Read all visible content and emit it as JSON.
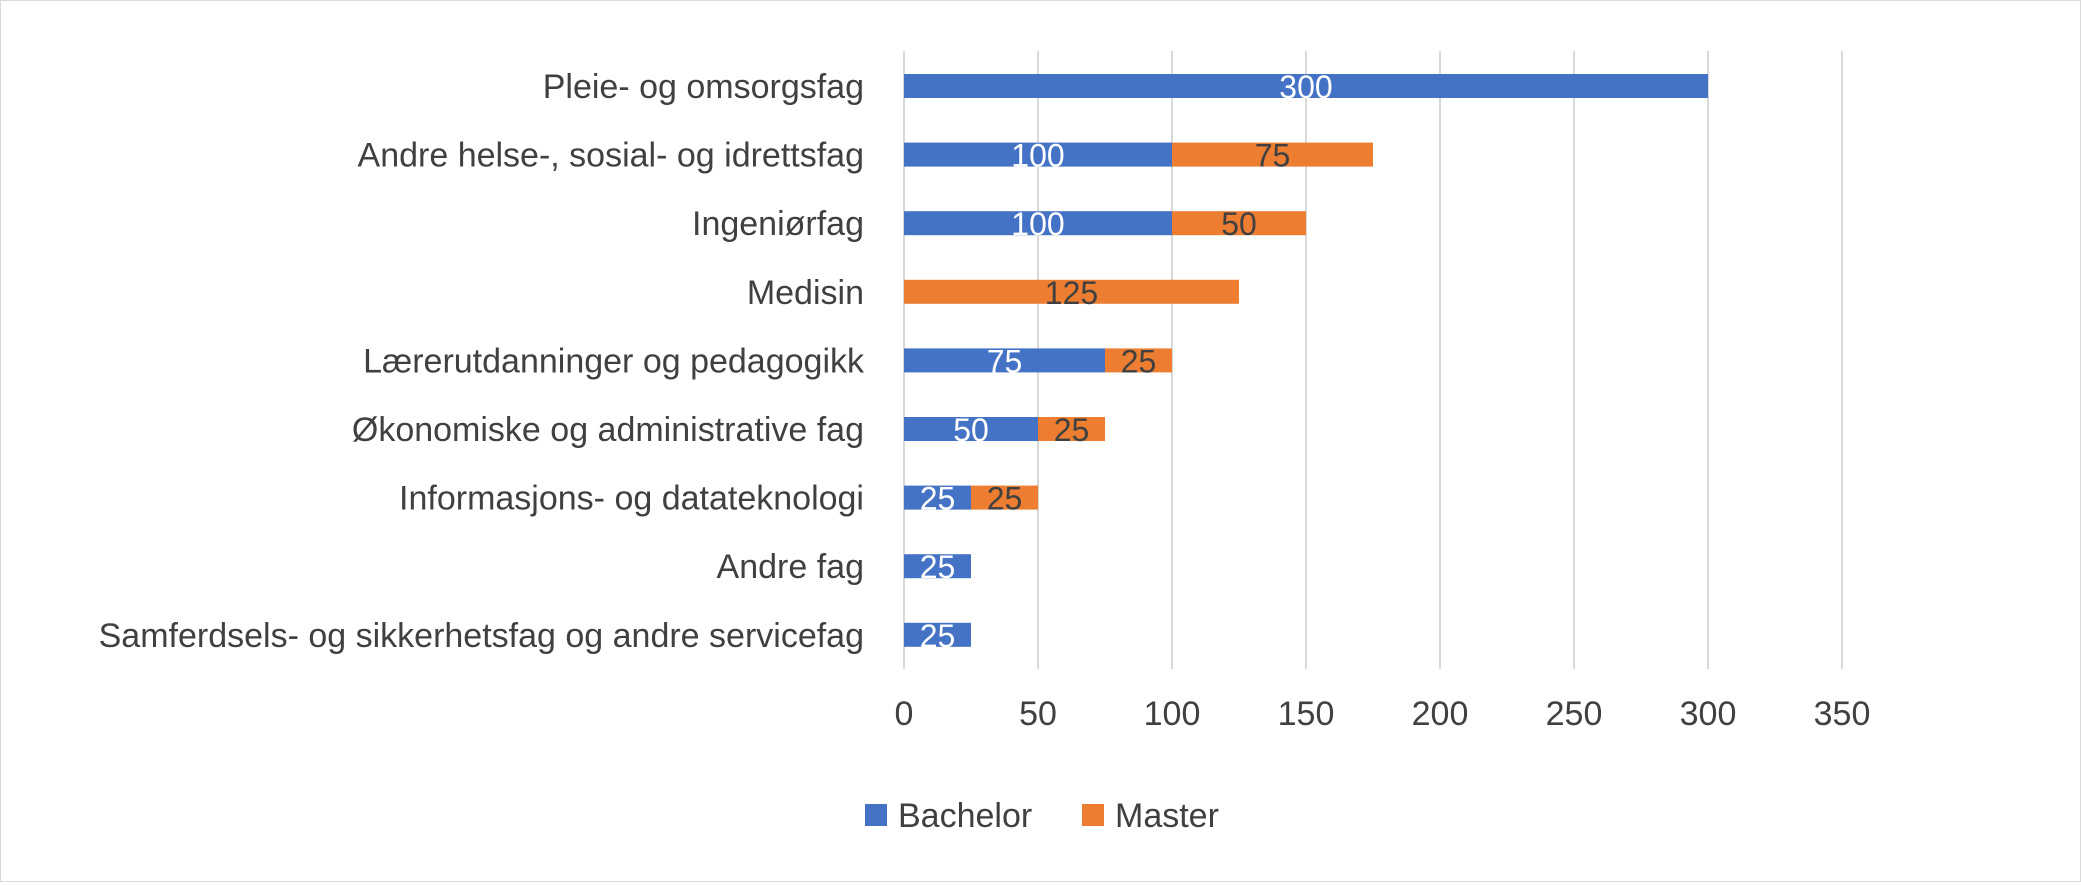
{
  "chart_data": {
    "type": "bar",
    "orientation": "horizontal",
    "stacked": true,
    "categories": [
      "Pleie- og omsorgsfag",
      "Andre helse-, sosial- og idrettsfag",
      "Ingeniørfag",
      "Medisin",
      "Lærerutdanninger og pedagogikk",
      "Økonomiske og administrative fag",
      "Informasjons- og datateknologi",
      "Andre fag",
      "Samferdsels- og sikkerhetsfag og andre servicefag"
    ],
    "series": [
      {
        "name": "Bachelor",
        "color": "#4472c4",
        "label_color": "#ffffff",
        "values": [
          300,
          100,
          100,
          0,
          75,
          50,
          25,
          25,
          25
        ]
      },
      {
        "name": "Master",
        "color": "#ed7d31",
        "label_color": "#404040",
        "values": [
          0,
          75,
          50,
          125,
          25,
          25,
          25,
          0,
          0
        ]
      }
    ],
    "xlim": [
      0,
      350
    ],
    "xticks": [
      0,
      50,
      100,
      150,
      200,
      250,
      300,
      350
    ],
    "grid": true,
    "legend_position": "bottom"
  }
}
